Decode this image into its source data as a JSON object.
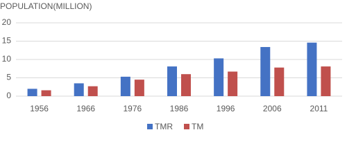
{
  "chart_data": {
    "type": "bar",
    "title": "POPULATION(MILLION)",
    "categories": [
      "1956",
      "1966",
      "1976",
      "1986",
      "1996",
      "2006",
      "2011"
    ],
    "series": [
      {
        "name": "TMR",
        "color": "#4472c4",
        "values": [
          2.0,
          3.5,
          5.3,
          8.1,
          10.3,
          13.4,
          14.6
        ]
      },
      {
        "name": "TM",
        "color": "#c0504d",
        "values": [
          1.6,
          2.7,
          4.5,
          6.0,
          6.7,
          7.8,
          8.1
        ]
      }
    ],
    "ylim": [
      0,
      20
    ],
    "yticks": [
      0,
      5,
      10,
      15,
      20
    ],
    "grid": true,
    "legend": "bottom"
  }
}
